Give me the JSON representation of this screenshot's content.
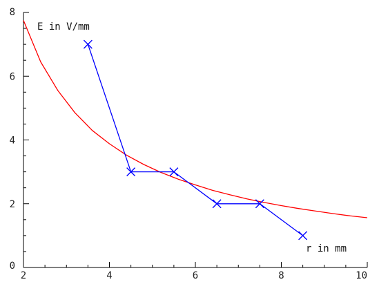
{
  "chart_data": {
    "type": "line",
    "title": "",
    "xlabel": "r in mm",
    "ylabel": "E in V/mm",
    "xlim": [
      2,
      10
    ],
    "ylim": [
      0,
      8
    ],
    "x_ticks": [
      2,
      4,
      6,
      8,
      10
    ],
    "y_ticks": [
      0,
      2,
      4,
      6,
      8
    ],
    "x_minor_step": 0.5,
    "y_minor_step": 0.5,
    "grid": false,
    "legend": "none",
    "series": [
      {
        "color": "#ff0000",
        "marker": "none",
        "x": [
          2.0,
          2.4,
          2.8,
          3.2,
          3.6,
          4.0,
          4.4,
          4.8,
          5.2,
          5.6,
          6.0,
          6.4,
          6.8,
          7.2,
          7.6,
          8.0,
          8.4,
          8.8,
          9.2,
          9.6,
          10.0
        ],
        "y": [
          7.75,
          6.45,
          5.55,
          4.85,
          4.3,
          3.88,
          3.52,
          3.23,
          2.98,
          2.77,
          2.59,
          2.42,
          2.28,
          2.15,
          2.04,
          1.94,
          1.85,
          1.77,
          1.69,
          1.62,
          1.56
        ]
      },
      {
        "color": "#0000ff",
        "marker": "x",
        "x": [
          3.5,
          4.5,
          5.5,
          6.5,
          7.5,
          8.5
        ],
        "y": [
          7,
          3,
          3,
          2,
          2,
          1
        ]
      }
    ]
  }
}
